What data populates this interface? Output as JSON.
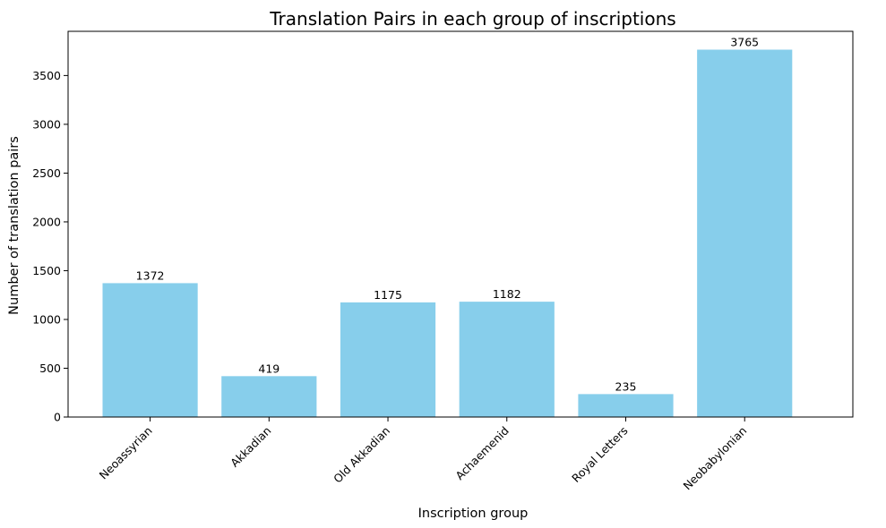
{
  "chart_data": {
    "type": "bar",
    "title": "Translation Pairs in each group of inscriptions",
    "xlabel": "Inscription group",
    "ylabel": "Number of translation pairs",
    "categories": [
      "Neoassyrian",
      "Akkadian",
      "Old Akkadian",
      "Achaemenid",
      "Royal Letters",
      "Neobabylonian"
    ],
    "values": [
      1372,
      419,
      1175,
      1182,
      235,
      3765
    ],
    "data_labels": [
      "1372",
      "419",
      "1175",
      "1182",
      "235",
      "3765"
    ],
    "ylim": [
      0,
      3953
    ],
    "yticks": [
      0,
      500,
      1000,
      1500,
      2000,
      2500,
      3000,
      3500
    ],
    "ytick_labels": [
      "0",
      "500",
      "1000",
      "1500",
      "2000",
      "2500",
      "3000",
      "3500"
    ],
    "bar_color": "#87CEEB",
    "grid": false,
    "legend": "none"
  }
}
